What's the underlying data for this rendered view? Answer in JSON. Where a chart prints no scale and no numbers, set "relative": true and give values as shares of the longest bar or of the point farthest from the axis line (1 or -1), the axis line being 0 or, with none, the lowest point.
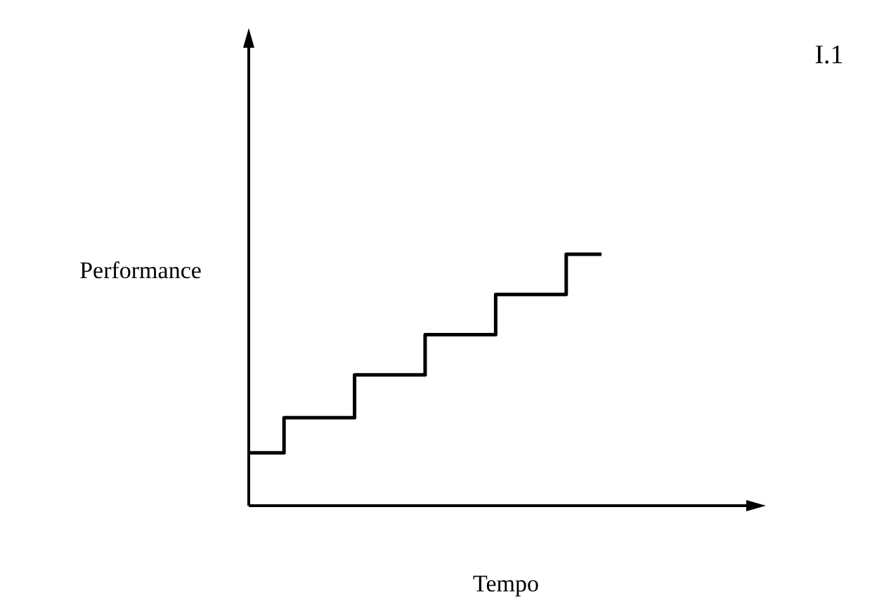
{
  "chart_data": {
    "type": "step",
    "relative": true,
    "xlabel": "Tempo",
    "ylabel": "Performance",
    "annotations": [
      "I.1"
    ],
    "categories": [
      null,
      null,
      null,
      null,
      null,
      null
    ],
    "series": [
      {
        "color": "#000000",
        "values": [
          0.21,
          0.35,
          0.52,
          0.68,
          0.84,
          1.0
        ]
      }
    ]
  }
}
